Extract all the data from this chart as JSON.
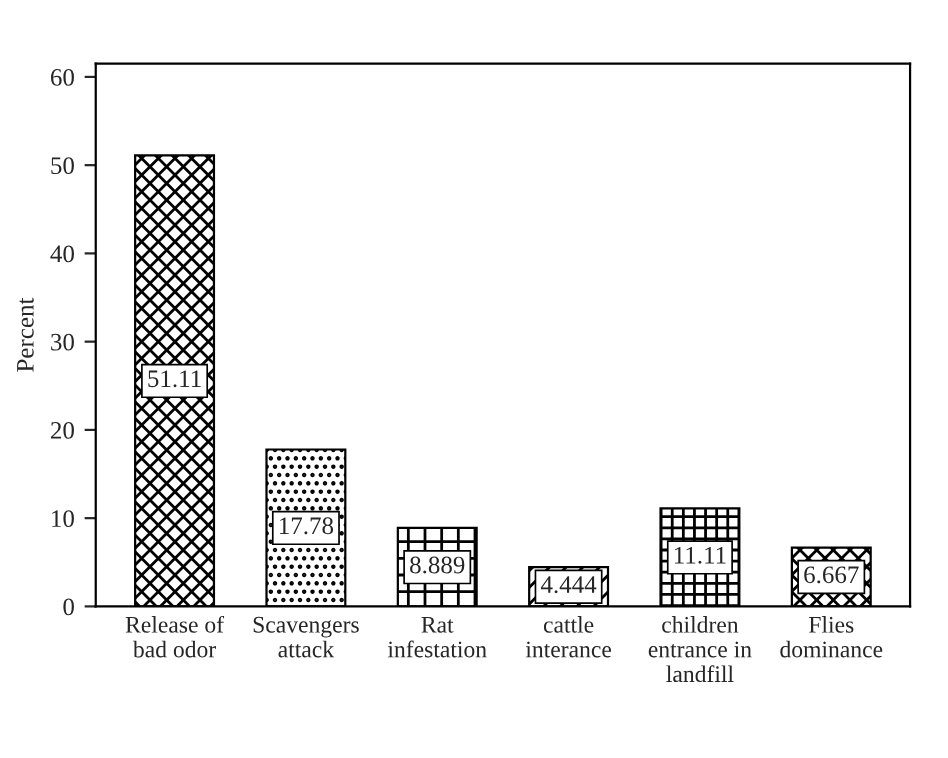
{
  "chart_data": {
    "type": "bar",
    "ylabel": "Percent",
    "categories": [
      "Release of\nbad odor",
      "Scavengers\nattack",
      "Rat\ninfestation",
      "cattle\ninterance",
      "children\nentrance in\nlandfill",
      "Flies\ndominance"
    ],
    "values": [
      51.11,
      17.78,
      8.889,
      4.444,
      11.11,
      6.667
    ],
    "color": "#000000",
    "data_labels": true,
    "ylim": [
      0,
      61.5
    ],
    "yticks": [
      0,
      10,
      20,
      30,
      40,
      50,
      60
    ],
    "grid": false,
    "legend": false
  }
}
